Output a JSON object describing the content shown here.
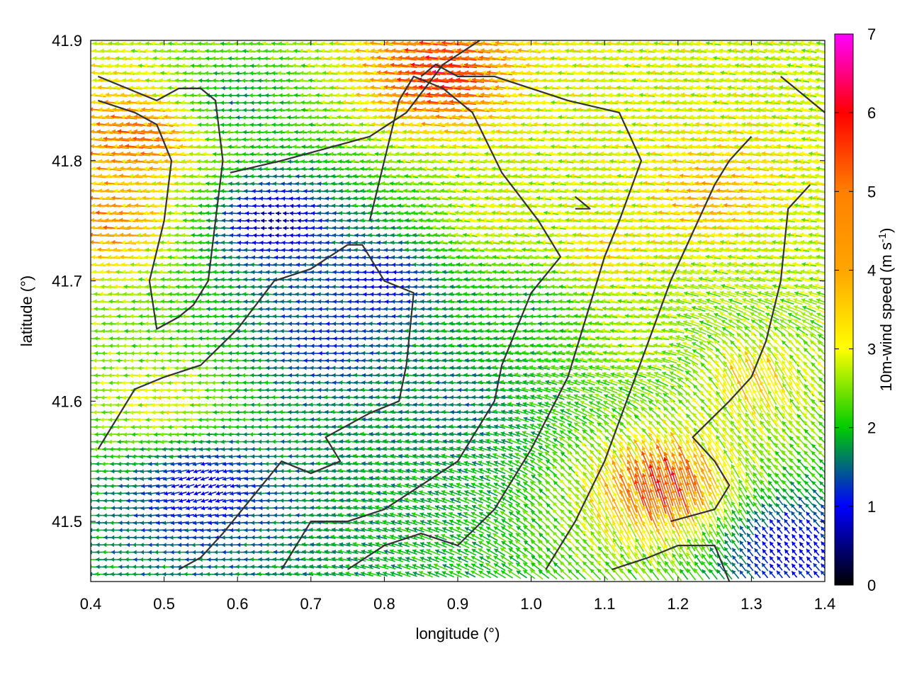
{
  "chart_data": {
    "type": "vector field",
    "xlabel": "longitude (°)",
    "ylabel": "latitude (°)",
    "xlim": [
      0.4,
      1.4
    ],
    "ylim": [
      41.45,
      41.9
    ],
    "xticks": [
      "0.4",
      "0.5",
      "0.6",
      "0.7",
      "0.8",
      "0.9",
      "1.0",
      "1.1",
      "1.2",
      "1.3",
      "1.4"
    ],
    "yticks": [
      "41.5",
      "41.6",
      "41.7",
      "41.8",
      "41.9"
    ],
    "grid": true,
    "colorbar": {
      "label_main": "10m-wind speed (m s",
      "label_sup": "-1",
      "label_end": ")",
      "range": [
        0,
        7
      ],
      "ticks": [
        "0",
        "1",
        "2",
        "3",
        "4",
        "5",
        "6",
        "7"
      ],
      "colors": [
        "#000000",
        "#0000ff",
        "#00cc00",
        "#ffff00",
        "#ff8000",
        "#ff0000",
        "#ff00ff"
      ]
    },
    "vectors": [
      {
        "lon": 0.43,
        "lat": 41.75,
        "u": -4.5,
        "v": 0.3
      },
      {
        "lon": 0.47,
        "lat": 41.82,
        "u": -4.8,
        "v": 0.5
      },
      {
        "lon": 0.5,
        "lat": 41.6,
        "u": -3.5,
        "v": -0.2
      },
      {
        "lon": 0.55,
        "lat": 41.53,
        "u": -1.0,
        "v": -0.4
      },
      {
        "lon": 0.6,
        "lat": 41.85,
        "u": -2.0,
        "v": 0.0
      },
      {
        "lon": 0.65,
        "lat": 41.75,
        "u": -0.5,
        "v": 0.0
      },
      {
        "lon": 0.72,
        "lat": 41.65,
        "u": -1.3,
        "v": 0.0
      },
      {
        "lon": 0.8,
        "lat": 41.7,
        "u": -1.0,
        "v": 0.0
      },
      {
        "lon": 0.88,
        "lat": 41.87,
        "u": -5.5,
        "v": 0.6
      },
      {
        "lon": 0.9,
        "lat": 41.6,
        "u": -1.8,
        "v": 0.1
      },
      {
        "lon": 0.95,
        "lat": 41.75,
        "u": -3.4,
        "v": 0.5
      },
      {
        "lon": 1.0,
        "lat": 41.68,
        "u": -2.2,
        "v": 0.0
      },
      {
        "lon": 1.05,
        "lat": 41.85,
        "u": -3.3,
        "v": 0.3
      },
      {
        "lon": 1.1,
        "lat": 41.72,
        "u": -3.8,
        "v": 0.4
      },
      {
        "lon": 1.15,
        "lat": 41.65,
        "u": -3.2,
        "v": 0.2
      },
      {
        "lon": 1.18,
        "lat": 41.53,
        "u": -1.5,
        "v": 5.2
      },
      {
        "lon": 1.25,
        "lat": 41.77,
        "u": -4.2,
        "v": 0.3
      },
      {
        "lon": 1.3,
        "lat": 41.62,
        "u": -1.5,
        "v": 3.6
      },
      {
        "lon": 1.35,
        "lat": 41.72,
        "u": -3.2,
        "v": 0.4
      },
      {
        "lon": 1.35,
        "lat": 41.48,
        "u": -0.6,
        "v": 0.8
      }
    ],
    "coastlines": [
      [
        [
          0.41,
          41.85
        ],
        [
          0.46,
          41.84
        ],
        [
          0.49,
          41.83
        ],
        [
          0.51,
          41.8
        ],
        [
          0.5,
          41.75
        ],
        [
          0.48,
          41.7
        ],
        [
          0.49,
          41.66
        ],
        [
          0.52,
          41.67
        ],
        [
          0.54,
          41.68
        ],
        [
          0.56,
          41.7
        ],
        [
          0.57,
          41.75
        ],
        [
          0.58,
          41.8
        ],
        [
          0.57,
          41.85
        ],
        [
          0.55,
          41.86
        ],
        [
          0.52,
          41.86
        ],
        [
          0.49,
          41.85
        ],
        [
          0.45,
          41.86
        ],
        [
          0.41,
          41.87
        ]
      ],
      [
        [
          0.41,
          41.56
        ],
        [
          0.43,
          41.58
        ],
        [
          0.46,
          41.61
        ],
        [
          0.5,
          41.62
        ],
        [
          0.55,
          41.63
        ],
        [
          0.6,
          41.66
        ],
        [
          0.65,
          41.7
        ],
        [
          0.7,
          41.71
        ],
        [
          0.75,
          41.73
        ],
        [
          0.77,
          41.73
        ],
        [
          0.8,
          41.7
        ],
        [
          0.84,
          41.69
        ],
        [
          0.83,
          41.63
        ],
        [
          0.82,
          41.6
        ],
        [
          0.78,
          41.59
        ],
        [
          0.75,
          41.58
        ],
        [
          0.72,
          41.57
        ],
        [
          0.74,
          41.55
        ],
        [
          0.7,
          41.54
        ],
        [
          0.66,
          41.55
        ],
        [
          0.62,
          41.52
        ],
        [
          0.58,
          41.49
        ],
        [
          0.55,
          41.47
        ],
        [
          0.52,
          41.46
        ]
      ],
      [
        [
          0.59,
          41.79
        ],
        [
          0.66,
          41.8
        ],
        [
          0.72,
          41.81
        ],
        [
          0.78,
          41.82
        ],
        [
          0.83,
          41.84
        ],
        [
          0.88,
          41.88
        ],
        [
          0.93,
          41.9
        ]
      ],
      [
        [
          0.66,
          41.46
        ],
        [
          0.7,
          41.5
        ],
        [
          0.75,
          41.5
        ],
        [
          0.8,
          41.51
        ],
        [
          0.85,
          41.53
        ],
        [
          0.9,
          41.55
        ],
        [
          0.95,
          41.6
        ],
        [
          0.96,
          41.63
        ],
        [
          1.0,
          41.69
        ],
        [
          1.04,
          41.72
        ],
        [
          1.01,
          41.75
        ],
        [
          0.96,
          41.79
        ],
        [
          0.92,
          41.84
        ],
        [
          0.88,
          41.86
        ],
        [
          0.84,
          41.87
        ],
        [
          0.82,
          41.85
        ],
        [
          0.8,
          41.8
        ],
        [
          0.78,
          41.75
        ]
      ],
      [
        [
          0.75,
          41.46
        ],
        [
          0.8,
          41.48
        ],
        [
          0.85,
          41.49
        ],
        [
          0.9,
          41.48
        ],
        [
          0.95,
          41.51
        ],
        [
          1.0,
          41.56
        ],
        [
          1.05,
          41.62
        ],
        [
          1.08,
          41.68
        ],
        [
          1.1,
          41.72
        ],
        [
          1.12,
          41.75
        ],
        [
          1.15,
          41.8
        ],
        [
          1.12,
          41.84
        ],
        [
          1.05,
          41.85
        ],
        [
          1.0,
          41.86
        ],
        [
          0.95,
          41.87
        ],
        [
          0.9,
          41.87
        ],
        [
          0.87,
          41.88
        ],
        [
          0.85,
          41.87
        ]
      ],
      [
        [
          1.02,
          41.46
        ],
        [
          1.06,
          41.5
        ],
        [
          1.1,
          41.55
        ],
        [
          1.13,
          41.6
        ],
        [
          1.16,
          41.65
        ],
        [
          1.19,
          41.7
        ],
        [
          1.22,
          41.74
        ],
        [
          1.25,
          41.78
        ],
        [
          1.27,
          41.8
        ],
        [
          1.3,
          41.82
        ]
      ],
      [
        [
          1.11,
          41.46
        ],
        [
          1.16,
          41.47
        ],
        [
          1.2,
          41.48
        ],
        [
          1.25,
          41.48
        ],
        [
          1.27,
          41.45
        ]
      ],
      [
        [
          1.19,
          41.5
        ],
        [
          1.25,
          41.51
        ],
        [
          1.27,
          41.53
        ],
        [
          1.25,
          41.55
        ],
        [
          1.22,
          41.57
        ],
        [
          1.27,
          41.6
        ],
        [
          1.3,
          41.62
        ],
        [
          1.32,
          41.65
        ],
        [
          1.34,
          41.7
        ],
        [
          1.35,
          41.76
        ],
        [
          1.38,
          41.78
        ]
      ],
      [
        [
          1.34,
          41.87
        ],
        [
          1.36,
          41.86
        ],
        [
          1.4,
          41.84
        ]
      ],
      [
        [
          1.06,
          41.76
        ],
        [
          1.08,
          41.76
        ],
        [
          1.06,
          41.77
        ]
      ]
    ]
  }
}
